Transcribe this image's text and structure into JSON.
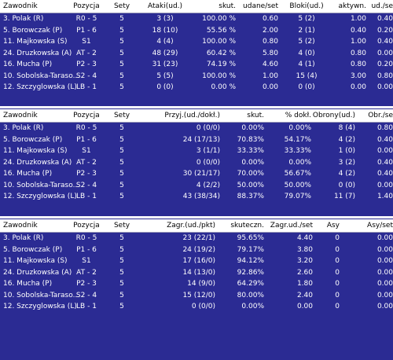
{
  "tables": [
    {
      "headers": [
        "Zawodnik",
        "Pozycja",
        "Sety",
        "Ataki(ud.)",
        "skut.",
        "udane/set",
        "Bloki(ud.)",
        "aktywn.",
        "ud./se"
      ],
      "rows": [
        [
          "3. Polak (R)",
          "R0 - 5",
          "5",
          "3 (3)",
          "100.00 %",
          "0.60",
          "5 (2)",
          "1.00",
          "0.40"
        ],
        [
          "5. Borowczak (P)",
          "P1 - 6",
          "5",
          "18 (10)",
          "55.56 %",
          "2.00",
          "2 (1)",
          "0.40",
          "0.20"
        ],
        [
          "11. Majkowska (S)",
          "S1",
          "5",
          "4 (4)",
          "100.00 %",
          "0.80",
          "5 (2)",
          "1.00",
          "0.40"
        ],
        [
          "24. Druzkowska (A)",
          "AT - 2",
          "5",
          "48 (29)",
          "60.42 %",
          "5.80",
          "4 (0)",
          "0.80",
          "0.00"
        ],
        [
          "16. Mucha (P)",
          "P2 - 3",
          "5",
          "31 (23)",
          "74.19 %",
          "4.60",
          "4 (1)",
          "0.80",
          "0.20"
        ],
        [
          "10. Sobolska-Taraso...",
          "S2 - 4",
          "5",
          "5 (5)",
          "100.00 %",
          "1.00",
          "15 (4)",
          "3.00",
          "0.80"
        ],
        [
          "12. Szczyglowska (L)",
          "LB - 1",
          "5",
          "0 (0)",
          "0.00 %",
          "0.00",
          "0 (0)",
          "0.00",
          "0.00"
        ]
      ]
    },
    {
      "headers": [
        "Zawodnik",
        "Pozycja",
        "Sety",
        "Przyj.(ud./dokł.)",
        "skut.",
        "% dokł.",
        "Obrony(ud.)",
        "Obr./se"
      ],
      "rows": [
        [
          "3. Polak (R)",
          "R0 - 5",
          "5",
          "0 (0/0)",
          "0.00%",
          "0.00%",
          "8 (4)",
          "0.80"
        ],
        [
          "5. Borowczak (P)",
          "P1 - 6",
          "5",
          "24 (17/13)",
          "70.83%",
          "54.17%",
          "4 (2)",
          "0.40"
        ],
        [
          "11. Majkowska (S)",
          "S1",
          "5",
          "3 (1/1)",
          "33.33%",
          "33.33%",
          "1 (0)",
          "0.00"
        ],
        [
          "24. Druzkowska (A)",
          "AT - 2",
          "5",
          "0 (0/0)",
          "0.00%",
          "0.00%",
          "3 (2)",
          "0.40"
        ],
        [
          "16. Mucha (P)",
          "P2 - 3",
          "5",
          "30 (21/17)",
          "70.00%",
          "56.67%",
          "4 (2)",
          "0.40"
        ],
        [
          "10. Sobolska-Taraso...",
          "S2 - 4",
          "5",
          "4 (2/2)",
          "50.00%",
          "50.00%",
          "0 (0)",
          "0.00"
        ],
        [
          "12. Szczyglowska (L)",
          "LB - 1",
          "5",
          "43 (38/34)",
          "88.37%",
          "79.07%",
          "11 (7)",
          "1.40"
        ]
      ]
    },
    {
      "headers": [
        "Zawodnik",
        "Pozycja",
        "Sety",
        "Zagr.(ud./pkt)",
        "skuteczn.",
        "Zagr.ud./set",
        "Asy",
        "Asy/set"
      ],
      "rows": [
        [
          "3. Polak (R)",
          "R0 - 5",
          "5",
          "23 (22/1)",
          "95.65%",
          "4.40",
          "0",
          "0.00"
        ],
        [
          "5. Borowczak (P)",
          "P1 - 6",
          "5",
          "24 (19/2)",
          "79.17%",
          "3.80",
          "0",
          "0.00"
        ],
        [
          "11. Majkowska (S)",
          "S1",
          "5",
          "17 (16/0)",
          "94.12%",
          "3.20",
          "0",
          "0.00"
        ],
        [
          "24. Druzkowska (A)",
          "AT - 2",
          "5",
          "14 (13/0)",
          "92.86%",
          "2.60",
          "0",
          "0.00"
        ],
        [
          "16. Mucha (P)",
          "P2 - 3",
          "5",
          "14 (9/0)",
          "64.29%",
          "1.80",
          "0",
          "0.00"
        ],
        [
          "10. Sobolska-Taraso...",
          "S2 - 4",
          "5",
          "15 (12/0)",
          "80.00%",
          "2.40",
          "0",
          "0.00"
        ],
        [
          "12. Szczyglowska (L)",
          "LB - 1",
          "5",
          "0 (0/0)",
          "0.00%",
          "0.00",
          "0",
          "0.00"
        ]
      ]
    }
  ],
  "colors": {
    "background": "#2b2b93",
    "header": "#ffffff",
    "text": "#ffffff"
  }
}
